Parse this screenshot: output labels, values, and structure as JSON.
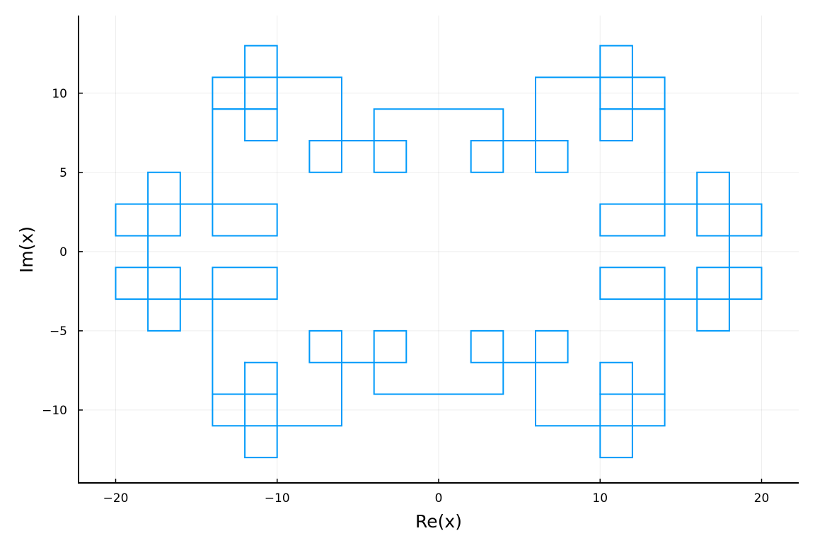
{
  "chart_data": {
    "type": "line",
    "xlabel": "Re(x)",
    "ylabel": "Im(x)",
    "xlim": [
      -22.3,
      22.3
    ],
    "ylim": [
      -14.6,
      14.9
    ],
    "xticks": [
      {
        "value": -20,
        "label": "−20"
      },
      {
        "value": -10,
        "label": "−10"
      },
      {
        "value": 0,
        "label": "0"
      },
      {
        "value": 10,
        "label": "10"
      },
      {
        "value": 20,
        "label": "20"
      }
    ],
    "yticks": [
      {
        "value": 10,
        "label": "10"
      },
      {
        "value": 5,
        "label": "5"
      },
      {
        "value": 0,
        "label": "0"
      },
      {
        "value": -5,
        "label": "−5"
      },
      {
        "value": -10,
        "label": "−10"
      }
    ],
    "grid": true,
    "legend": false,
    "series": [
      {
        "color": "#009AFA",
        "segments": [
          {
            "x": [
              -12,
              -12,
              -10,
              -10,
              -14,
              -14,
              -6,
              -6,
              -8,
              -8,
              -2,
              -2,
              -4,
              -4,
              4,
              4,
              2,
              2,
              8,
              8,
              6,
              6,
              14,
              14,
              10,
              10,
              12,
              12
            ],
            "y": [
              7,
              13,
              13,
              9,
              9,
              11,
              11,
              5,
              5,
              7,
              7,
              5,
              5,
              9,
              9,
              5,
              5,
              7,
              7,
              5,
              5,
              11,
              11,
              9,
              9,
              13,
              13,
              7
            ]
          },
          {
            "x": [
              -12,
              -12,
              -10,
              -10,
              -14,
              -14,
              -6,
              -6,
              -8,
              -8,
              -2,
              -2,
              -4,
              -4,
              4,
              4,
              2,
              2,
              8,
              8,
              6,
              6,
              14,
              14,
              10,
              10,
              12,
              12
            ],
            "y": [
              -7,
              -13,
              -13,
              -9,
              -9,
              -11,
              -11,
              -5,
              -5,
              -7,
              -7,
              -5,
              -5,
              -9,
              -9,
              -5,
              -5,
              -7,
              -7,
              -5,
              -5,
              -11,
              -11,
              -9,
              -9,
              -13,
              -13,
              -7
            ]
          },
          {
            "x": [
              -12,
              -10,
              -10,
              -14,
              -14,
              -10,
              -10,
              -20,
              -20,
              -16,
              -16,
              -18,
              -18,
              -16,
              -16,
              -20,
              -20,
              -10,
              -10,
              -14,
              -14,
              -10,
              -10,
              -12
            ],
            "y": [
              7,
              7,
              9,
              9,
              1,
              1,
              3,
              3,
              1,
              1,
              5,
              5,
              -5,
              -5,
              -1,
              -1,
              -3,
              -3,
              -1,
              -1,
              -9,
              -9,
              -7,
              -7
            ]
          },
          {
            "x": [
              12,
              10,
              10,
              14,
              14,
              10,
              10,
              20,
              20,
              16,
              16,
              18,
              18,
              16,
              16,
              20,
              20,
              10,
              10,
              14,
              14,
              10,
              10,
              12
            ],
            "y": [
              7,
              7,
              9,
              9,
              1,
              1,
              3,
              3,
              1,
              1,
              5,
              5,
              -5,
              -5,
              -1,
              -1,
              -3,
              -3,
              -1,
              -1,
              -9,
              -9,
              -7,
              -7
            ]
          }
        ]
      }
    ]
  }
}
